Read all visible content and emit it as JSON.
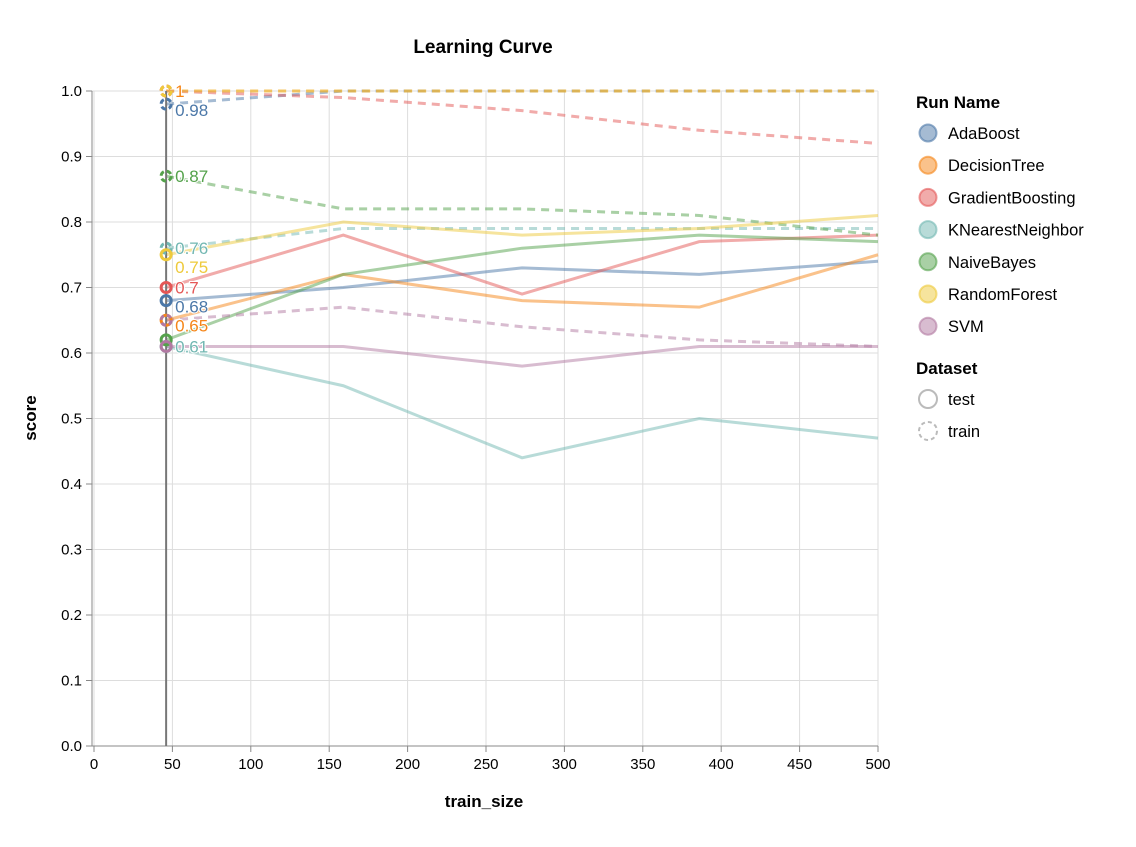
{
  "chart_data": {
    "type": "line",
    "title": "Learning Curve",
    "xlabel": "train_size",
    "ylabel": "score",
    "xlim": [
      0,
      500
    ],
    "ylim": [
      0,
      1
    ],
    "grid": true,
    "x_ticks": [
      "0",
      "50",
      "100",
      "150",
      "200",
      "250",
      "300",
      "350",
      "400",
      "450",
      "500"
    ],
    "y_ticks": [
      "0.0",
      "0.1",
      "0.2",
      "0.3",
      "0.4",
      "0.5",
      "0.6",
      "0.7",
      "0.8",
      "0.9",
      "1.0"
    ],
    "x": [
      46,
      159,
      273,
      386,
      500
    ],
    "legend_position": "right",
    "color_legend_title": "Run Name",
    "dash_legend_title": "Dataset",
    "datasets": [
      {
        "name": "test",
        "dashed": false
      },
      {
        "name": "train",
        "dashed": true
      }
    ],
    "series": [
      {
        "name": "AdaBoost",
        "color": "#4c78a8",
        "test": [
          0.68,
          0.7,
          0.73,
          0.72,
          0.74
        ],
        "train": [
          0.98,
          1.0,
          1.0,
          1.0,
          1.0
        ]
      },
      {
        "name": "DecisionTree",
        "color": "#f58518",
        "test": [
          0.65,
          0.72,
          0.68,
          0.67,
          0.75
        ],
        "train": [
          1.0,
          1.0,
          1.0,
          1.0,
          1.0
        ]
      },
      {
        "name": "GradientBoosting",
        "color": "#e45756",
        "test": [
          0.7,
          0.78,
          0.69,
          0.77,
          0.78
        ],
        "train": [
          1.0,
          0.99,
          0.97,
          0.94,
          0.92
        ]
      },
      {
        "name": "KNearestNeighbor",
        "color": "#72b7b2",
        "test": [
          0.61,
          0.55,
          0.44,
          0.5,
          0.47
        ],
        "train": [
          0.76,
          0.79,
          0.79,
          0.79,
          0.79
        ]
      },
      {
        "name": "NaiveBayes",
        "color": "#54a24b",
        "test": [
          0.62,
          0.72,
          0.76,
          0.78,
          0.77
        ],
        "train": [
          0.87,
          0.82,
          0.82,
          0.81,
          0.78
        ]
      },
      {
        "name": "RandomForest",
        "color": "#eeca3b",
        "test": [
          0.75,
          0.8,
          0.78,
          0.79,
          0.81
        ],
        "train": [
          1.0,
          1.0,
          1.0,
          1.0,
          1.0
        ]
      },
      {
        "name": "SVM",
        "color": "#b279a2",
        "test": [
          0.61,
          0.61,
          0.58,
          0.61,
          0.61
        ],
        "train": [
          0.65,
          0.67,
          0.64,
          0.62,
          0.61
        ]
      }
    ],
    "hover_rule_x": 46,
    "hover_labels": [
      {
        "text": "1",
        "series": "DecisionTree",
        "value": 1.0
      },
      {
        "text": "0.98",
        "series": "AdaBoost",
        "value": 0.98
      },
      {
        "text": "0.87",
        "series": "NaiveBayes",
        "value": 0.87
      },
      {
        "text": "0.76",
        "series": "KNearestNeighbor",
        "value": 0.76
      },
      {
        "text": "0.75",
        "series": "RandomForest",
        "value": 0.75
      },
      {
        "text": "0.7",
        "series": "GradientBoosting",
        "value": 0.7
      },
      {
        "text": "0.68",
        "series": "AdaBoost",
        "value": 0.68
      },
      {
        "text": "0.65",
        "series": "DecisionTree",
        "value": 0.65
      },
      {
        "text": "0.61",
        "series": "KNearestNeighbor",
        "value": 0.61
      }
    ]
  }
}
